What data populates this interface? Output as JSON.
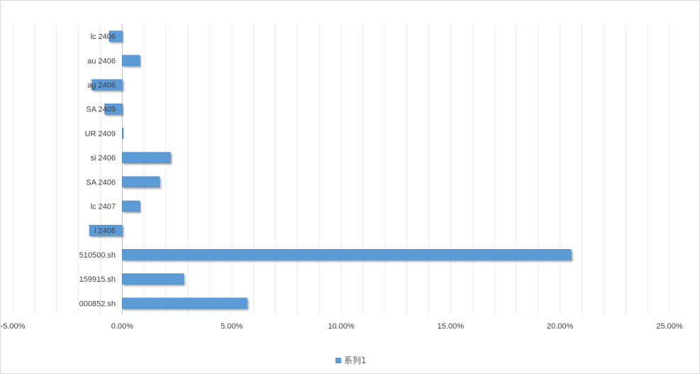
{
  "chart_data": {
    "type": "bar",
    "orientation": "horizontal",
    "categories": [
      "lc 2406",
      "au 2406",
      "ag 2406",
      "SA 2409",
      "UR 2409",
      "si 2406",
      "SA 2406",
      "lc 2407",
      "i 2406",
      "510500.sh",
      "159915.sh",
      "000852.sh"
    ],
    "series": [
      {
        "name": "系列1",
        "values": [
          -0.6,
          0.8,
          -1.4,
          -0.8,
          0.05,
          2.2,
          1.7,
          0.8,
          -1.5,
          20.5,
          2.8,
          5.7
        ]
      }
    ],
    "xlim": [
      -5,
      25
    ],
    "xticks": [
      -5,
      0,
      5,
      10,
      15,
      20,
      25
    ],
    "xtick_labels": [
      "-5.00%",
      "0.00%",
      "5.00%",
      "10.00%",
      "15.00%",
      "20.00%",
      "25.00%"
    ],
    "grid": "vertical",
    "legend_position": "bottom",
    "colors": {
      "bar": "#5b9bd5",
      "bar_edge": "#4a86c0",
      "grid": "#e8e8e8",
      "axis": "#bfbfbf",
      "text": "#404040"
    }
  }
}
